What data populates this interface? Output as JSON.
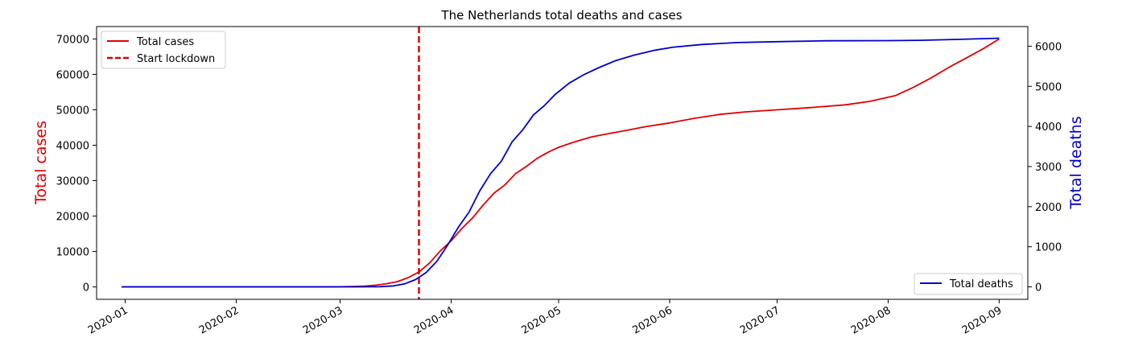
{
  "chart_data": {
    "type": "line",
    "title": "The Netherlands total deaths and  cases",
    "x_ticks": [
      "2020-01",
      "2020-02",
      "2020-03",
      "2020-04",
      "2020-05",
      "2020-06",
      "2020-07",
      "2020-08",
      "2020-09"
    ],
    "y_left": {
      "label": "Total cases",
      "color": "#e00000",
      "ylim": [
        -3500,
        73500
      ],
      "ticks": [
        0,
        10000,
        20000,
        30000,
        40000,
        50000,
        60000,
        70000
      ]
    },
    "y_right": {
      "label": "Total deaths",
      "color": "#0000cc",
      "ylim": [
        -310,
        6490
      ],
      "ticks": [
        0,
        1000,
        2000,
        3000,
        4000,
        5000,
        6000
      ]
    },
    "xlim": [
      "2019-12-24",
      "2020-09-09"
    ],
    "grid": false,
    "series": [
      {
        "name": "Total cases",
        "axis": "left",
        "color": "#e00000",
        "style": "solid",
        "legend": "top-left",
        "points": [
          [
            "2019-12-31",
            0
          ],
          [
            "2020-02-26",
            0
          ],
          [
            "2020-03-01",
            50
          ],
          [
            "2020-03-05",
            130
          ],
          [
            "2020-03-08",
            250
          ],
          [
            "2020-03-11",
            500
          ],
          [
            "2020-03-14",
            900
          ],
          [
            "2020-03-17",
            1500
          ],
          [
            "2020-03-20",
            2600
          ],
          [
            "2020-03-23",
            4200
          ],
          [
            "2020-03-26",
            6800
          ],
          [
            "2020-03-29",
            10200
          ],
          [
            "2020-04-01",
            13000
          ],
          [
            "2020-04-04",
            16500
          ],
          [
            "2020-04-07",
            19500
          ],
          [
            "2020-04-10",
            23200
          ],
          [
            "2020-04-13",
            26500
          ],
          [
            "2020-04-16",
            28800
          ],
          [
            "2020-04-19",
            32000
          ],
          [
            "2020-04-22",
            34000
          ],
          [
            "2020-04-25",
            36300
          ],
          [
            "2020-04-28",
            38000
          ],
          [
            "2020-05-01",
            39400
          ],
          [
            "2020-05-05",
            40800
          ],
          [
            "2020-05-10",
            42300
          ],
          [
            "2020-05-15",
            43300
          ],
          [
            "2020-05-20",
            44200
          ],
          [
            "2020-05-25",
            45200
          ],
          [
            "2020-06-01",
            46300
          ],
          [
            "2020-06-08",
            47600
          ],
          [
            "2020-06-15",
            48700
          ],
          [
            "2020-06-22",
            49400
          ],
          [
            "2020-07-01",
            50000
          ],
          [
            "2020-07-10",
            50600
          ],
          [
            "2020-07-20",
            51400
          ],
          [
            "2020-07-27",
            52400
          ],
          [
            "2020-08-03",
            54000
          ],
          [
            "2020-08-08",
            56300
          ],
          [
            "2020-08-13",
            59000
          ],
          [
            "2020-08-18",
            62000
          ],
          [
            "2020-08-23",
            64700
          ],
          [
            "2020-08-28",
            67500
          ],
          [
            "2020-09-01",
            70000
          ]
        ]
      },
      {
        "name": "Start lockdown",
        "axis": "left",
        "color": "#e00000",
        "style": "dashed",
        "legend": "top-left",
        "x": "2020-03-23"
      },
      {
        "name": "Total deaths",
        "axis": "right",
        "color": "#0000cc",
        "style": "solid",
        "legend": "bottom-right",
        "points": [
          [
            "2019-12-31",
            0
          ],
          [
            "2020-03-06",
            0
          ],
          [
            "2020-03-12",
            5
          ],
          [
            "2020-03-16",
            24
          ],
          [
            "2020-03-19",
            76
          ],
          [
            "2020-03-22",
            179
          ],
          [
            "2020-03-25",
            356
          ],
          [
            "2020-03-28",
            639
          ],
          [
            "2020-03-31",
            1039
          ],
          [
            "2020-04-03",
            1487
          ],
          [
            "2020-04-06",
            1867
          ],
          [
            "2020-04-09",
            2396
          ],
          [
            "2020-04-12",
            2823
          ],
          [
            "2020-04-15",
            3134
          ],
          [
            "2020-04-18",
            3613
          ],
          [
            "2020-04-21",
            3916
          ],
          [
            "2020-04-24",
            4289
          ],
          [
            "2020-04-27",
            4518
          ],
          [
            "2020-04-30",
            4795
          ],
          [
            "2020-05-04",
            5082
          ],
          [
            "2020-05-08",
            5288
          ],
          [
            "2020-05-12",
            5456
          ],
          [
            "2020-05-17",
            5643
          ],
          [
            "2020-05-22",
            5775
          ],
          [
            "2020-05-28",
            5903
          ],
          [
            "2020-06-02",
            5977
          ],
          [
            "2020-06-10",
            6042
          ],
          [
            "2020-06-20",
            6090
          ],
          [
            "2020-07-01",
            6113
          ],
          [
            "2020-07-15",
            6135
          ],
          [
            "2020-08-01",
            6139
          ],
          [
            "2020-08-10",
            6147
          ],
          [
            "2020-08-20",
            6170
          ],
          [
            "2020-09-01",
            6200
          ]
        ]
      }
    ]
  }
}
